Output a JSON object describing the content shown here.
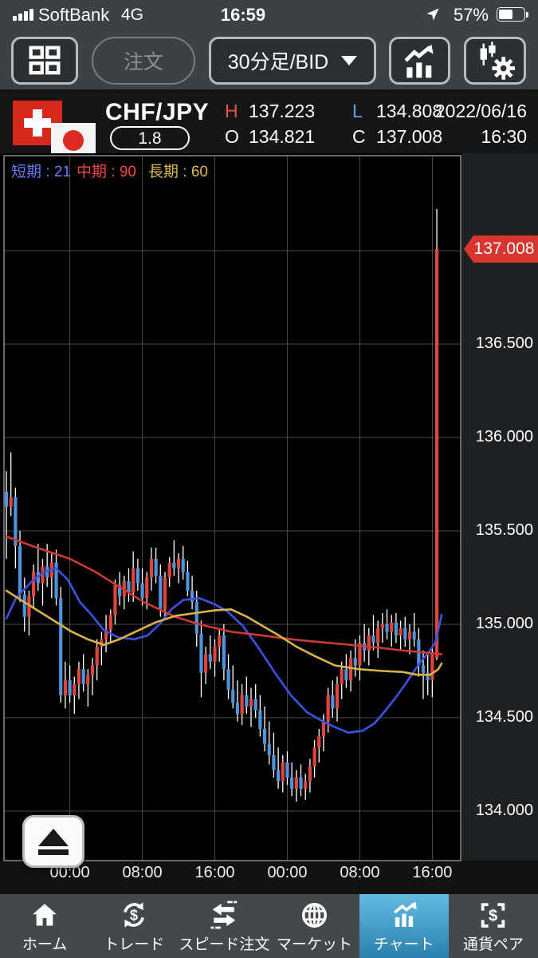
{
  "status_bar": {
    "carrier": "SoftBank",
    "network": "4G",
    "time": "16:59",
    "battery_percent": "57%"
  },
  "toolbar": {
    "order_label": "注文",
    "timeframe_label": "30分足/BID"
  },
  "pair_header": {
    "pair": "CHF/JPY",
    "spread": "1.8",
    "high_label": "H",
    "high": "137.223",
    "low_label": "L",
    "low": "134.808",
    "open_label": "O",
    "open": "134.821",
    "close_label": "C",
    "close": "137.008",
    "date": "2022/06/16",
    "time": "16:30"
  },
  "chart_data": {
    "type": "candlestick",
    "title": "CHF/JPY 30分足/BID",
    "timeframe": "30分足/BID",
    "legend": [
      {
        "label": "短期 : 21",
        "color": "#6b7bf0"
      },
      {
        "label": "中期 : 90",
        "color": "#ef4a41"
      },
      {
        "label": "長期 : 60",
        "color": "#ddb94e"
      }
    ],
    "colors": {
      "up": "#e0443a",
      "down": "#4e93dc",
      "wick": "#ffffff",
      "ma_short": "#3d52e0",
      "ma_mid": "#cc3b33",
      "ma_long": "#d8b345",
      "grid": "#4a4a4a",
      "frame": "#8a8a8a"
    },
    "y_axis": {
      "labels": [
        "136.500",
        "136.000",
        "135.500",
        "135.000",
        "134.500",
        "134.000"
      ],
      "label_prices": [
        136.5,
        136.0,
        135.5,
        135.0,
        134.5,
        134.0
      ],
      "gridline_prices": [
        137.0,
        136.5,
        136.0,
        135.5,
        135.0,
        134.5,
        134.0
      ],
      "range": [
        133.74,
        137.51
      ]
    },
    "x_axis": {
      "labels": [
        "00:00",
        "08:00",
        "16:00",
        "00:00",
        "08:00",
        "16:00"
      ],
      "candle_indices": [
        14,
        30,
        46,
        62,
        78,
        94
      ]
    },
    "last_price_badge": "137.008",
    "last_price": 137.008,
    "candles": [
      [
        135.71,
        135.82,
        135.35,
        135.63
      ],
      [
        135.63,
        135.92,
        135.58,
        135.68
      ],
      [
        135.68,
        135.73,
        135.3,
        135.42
      ],
      [
        135.42,
        135.5,
        135.12,
        135.16
      ],
      [
        135.16,
        135.25,
        134.96,
        135.04
      ],
      [
        135.04,
        135.18,
        134.94,
        135.15
      ],
      [
        135.15,
        135.32,
        135.08,
        135.28
      ],
      [
        135.28,
        135.43,
        135.18,
        135.22
      ],
      [
        135.22,
        135.35,
        135.1,
        135.31
      ],
      [
        135.31,
        135.43,
        135.2,
        135.25
      ],
      [
        135.25,
        135.38,
        135.14,
        135.33
      ],
      [
        135.33,
        135.4,
        135.1,
        135.14
      ],
      [
        135.14,
        135.2,
        134.58,
        134.62
      ],
      [
        134.62,
        134.8,
        134.55,
        134.7
      ],
      [
        134.7,
        134.78,
        134.58,
        134.62
      ],
      [
        134.62,
        134.72,
        134.52,
        134.68
      ],
      [
        134.68,
        134.8,
        134.6,
        134.76
      ],
      [
        134.76,
        134.84,
        134.64,
        134.68
      ],
      [
        134.68,
        134.76,
        134.56,
        134.73
      ],
      [
        134.73,
        134.82,
        134.62,
        134.78
      ],
      [
        134.78,
        134.92,
        134.7,
        134.88
      ],
      [
        134.88,
        134.96,
        134.78,
        134.92
      ],
      [
        134.92,
        135.05,
        134.85,
        134.97
      ],
      [
        134.97,
        135.08,
        134.9,
        135.05
      ],
      [
        135.05,
        135.24,
        135.0,
        135.21
      ],
      [
        135.21,
        135.28,
        135.1,
        135.15
      ],
      [
        135.15,
        135.26,
        135.08,
        135.23
      ],
      [
        135.23,
        135.3,
        135.12,
        135.17
      ],
      [
        135.17,
        135.39,
        135.12,
        135.3
      ],
      [
        135.3,
        135.35,
        135.18,
        135.22
      ],
      [
        135.22,
        135.3,
        135.1,
        135.14
      ],
      [
        135.14,
        135.28,
        135.08,
        135.25
      ],
      [
        135.25,
        135.41,
        135.18,
        135.35
      ],
      [
        135.35,
        135.41,
        135.22,
        135.26
      ],
      [
        135.26,
        135.32,
        135.04,
        135.08
      ],
      [
        135.08,
        135.28,
        135.04,
        135.25
      ],
      [
        135.25,
        135.36,
        135.2,
        135.33
      ],
      [
        135.33,
        135.45,
        135.26,
        135.3
      ],
      [
        135.3,
        135.38,
        135.22,
        135.35
      ],
      [
        135.35,
        135.42,
        135.24,
        135.28
      ],
      [
        135.28,
        135.34,
        135.15,
        135.18
      ],
      [
        135.18,
        135.26,
        135.08,
        135.12
      ],
      [
        135.12,
        135.18,
        134.88,
        134.95
      ],
      [
        134.95,
        135.02,
        134.61,
        134.74
      ],
      [
        134.74,
        134.88,
        134.68,
        134.84
      ],
      [
        134.84,
        134.94,
        134.76,
        134.8
      ],
      [
        134.8,
        134.92,
        134.72,
        134.88
      ],
      [
        134.88,
        134.98,
        134.8,
        134.94
      ],
      [
        134.94,
        135.0,
        134.7,
        134.76
      ],
      [
        134.76,
        134.84,
        134.6,
        134.65
      ],
      [
        134.65,
        134.78,
        134.55,
        134.58
      ],
      [
        134.58,
        134.7,
        134.48,
        134.52
      ],
      [
        134.52,
        134.68,
        134.46,
        134.62
      ],
      [
        134.62,
        134.72,
        134.52,
        134.56
      ],
      [
        134.56,
        134.66,
        134.45,
        134.6
      ],
      [
        134.6,
        134.68,
        134.5,
        134.54
      ],
      [
        134.54,
        134.62,
        134.4,
        134.44
      ],
      [
        134.44,
        134.56,
        134.32,
        134.36
      ],
      [
        134.36,
        134.48,
        134.25,
        134.3
      ],
      [
        134.3,
        134.42,
        134.18,
        134.22
      ],
      [
        134.22,
        134.34,
        134.12,
        134.16
      ],
      [
        134.16,
        134.3,
        134.1,
        134.26
      ],
      [
        134.26,
        134.32,
        134.14,
        134.18
      ],
      [
        134.18,
        134.26,
        134.08,
        134.12
      ],
      [
        134.12,
        134.22,
        134.05,
        134.18
      ],
      [
        134.18,
        134.25,
        134.08,
        134.12
      ],
      [
        134.12,
        134.2,
        134.06,
        134.16
      ],
      [
        134.16,
        134.28,
        134.1,
        134.24
      ],
      [
        134.24,
        134.38,
        134.18,
        134.34
      ],
      [
        134.34,
        134.44,
        134.26,
        134.4
      ],
      [
        134.4,
        134.52,
        134.32,
        134.48
      ],
      [
        134.48,
        134.66,
        134.42,
        134.62
      ],
      [
        134.62,
        134.7,
        134.5,
        134.55
      ],
      [
        134.55,
        134.72,
        134.48,
        134.68
      ],
      [
        134.68,
        134.8,
        134.6,
        134.76
      ],
      [
        134.76,
        134.84,
        134.66,
        134.7
      ],
      [
        134.7,
        134.86,
        134.64,
        134.82
      ],
      [
        134.82,
        134.92,
        134.72,
        134.78
      ],
      [
        134.78,
        134.94,
        134.7,
        134.9
      ],
      [
        134.9,
        135.0,
        134.8,
        134.86
      ],
      [
        134.86,
        134.98,
        134.78,
        134.94
      ],
      [
        134.94,
        135.05,
        134.86,
        134.9
      ],
      [
        134.9,
        135.02,
        134.82,
        134.98
      ],
      [
        134.98,
        135.06,
        134.9,
        135.0
      ],
      [
        135.0,
        135.08,
        134.92,
        134.96
      ],
      [
        134.96,
        135.05,
        134.88,
        135.01
      ],
      [
        135.01,
        135.06,
        134.9,
        134.94
      ],
      [
        134.94,
        135.02,
        134.86,
        134.98
      ],
      [
        134.98,
        135.04,
        134.88,
        134.92
      ],
      [
        134.92,
        135.0,
        134.84,
        134.96
      ],
      [
        134.96,
        135.06,
        134.88,
        134.92
      ],
      [
        134.92,
        134.98,
        134.72,
        134.78
      ],
      [
        134.78,
        134.86,
        134.6,
        134.74
      ],
      [
        134.74,
        134.84,
        134.62,
        134.7
      ],
      [
        134.7,
        134.88,
        134.61,
        134.85
      ],
      [
        134.821,
        137.223,
        134.808,
        137.008
      ]
    ],
    "moving_averages": [
      {
        "name": "短期(21)",
        "color": "#3d52e0",
        "points": [
          [
            8,
            135.03
          ],
          [
            20,
            135.14
          ],
          [
            40,
            135.23
          ],
          [
            55,
            135.28
          ],
          [
            70,
            135.3
          ],
          [
            85,
            135.24
          ],
          [
            100,
            135.12
          ],
          [
            115,
            135.05
          ],
          [
            130,
            134.97
          ],
          [
            148,
            134.93
          ],
          [
            168,
            134.92
          ],
          [
            185,
            134.94
          ],
          [
            200,
            135.0
          ],
          [
            215,
            135.08
          ],
          [
            230,
            135.13
          ],
          [
            250,
            135.14
          ],
          [
            268,
            135.11
          ],
          [
            285,
            135.07
          ],
          [
            305,
            134.99
          ],
          [
            325,
            134.87
          ],
          [
            345,
            134.74
          ],
          [
            365,
            134.62
          ],
          [
            385,
            134.53
          ],
          [
            405,
            134.48
          ],
          [
            420,
            134.45
          ],
          [
            437,
            134.42
          ],
          [
            455,
            134.43
          ],
          [
            470,
            134.47
          ],
          [
            482,
            134.53
          ],
          [
            495,
            134.6
          ],
          [
            507,
            134.67
          ],
          [
            518,
            134.74
          ],
          [
            528,
            134.8
          ],
          [
            538,
            134.85
          ],
          [
            546,
            134.9
          ],
          [
            551,
            134.99
          ],
          [
            554,
            135.05
          ]
        ]
      },
      {
        "name": "中期(90)",
        "color": "#cc3b33",
        "points": [
          [
            8,
            135.47
          ],
          [
            40,
            135.42
          ],
          [
            88,
            135.35
          ],
          [
            120,
            135.28
          ],
          [
            150,
            135.2
          ],
          [
            180,
            135.12
          ],
          [
            220,
            135.04
          ],
          [
            250,
            135.0
          ],
          [
            290,
            134.96
          ],
          [
            330,
            134.94
          ],
          [
            365,
            134.92
          ],
          [
            400,
            134.905
          ],
          [
            440,
            134.89
          ],
          [
            475,
            134.875
          ],
          [
            505,
            134.86
          ],
          [
            530,
            134.85
          ],
          [
            554,
            134.84
          ]
        ]
      },
      {
        "name": "長期(60)",
        "color": "#d8b345",
        "points": [
          [
            8,
            135.18
          ],
          [
            30,
            135.12
          ],
          [
            60,
            135.04
          ],
          [
            90,
            134.96
          ],
          [
            110,
            134.92
          ],
          [
            130,
            134.89
          ],
          [
            150,
            134.92
          ],
          [
            170,
            134.96
          ],
          [
            195,
            135.01
          ],
          [
            220,
            135.045
          ],
          [
            245,
            135.06
          ],
          [
            270,
            135.075
          ],
          [
            290,
            135.08
          ],
          [
            310,
            135.04
          ],
          [
            330,
            134.99
          ],
          [
            350,
            134.94
          ],
          [
            372,
            134.88
          ],
          [
            395,
            134.83
          ],
          [
            420,
            134.78
          ],
          [
            450,
            134.76
          ],
          [
            480,
            134.75
          ],
          [
            505,
            134.745
          ],
          [
            523,
            134.73
          ],
          [
            540,
            134.73
          ],
          [
            550,
            134.76
          ],
          [
            554,
            134.79
          ]
        ]
      }
    ]
  },
  "bottom_nav": {
    "items": [
      {
        "label": "ホーム"
      },
      {
        "label": "トレード"
      },
      {
        "label": "スピード注文"
      },
      {
        "label": "マーケット"
      },
      {
        "label": "チャート"
      },
      {
        "label": "通貨ペア"
      }
    ],
    "active_index": 4
  }
}
